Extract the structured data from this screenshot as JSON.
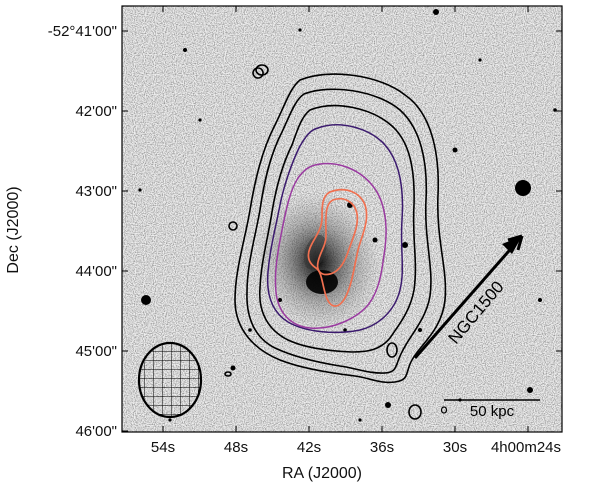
{
  "figure": {
    "x_axis_label": "RA (J2000)",
    "y_axis_label": "Dec (J2000)",
    "x_tick_labels": [
      "54s",
      "48s",
      "42s",
      "36s",
      "30s",
      "4h00m24s"
    ],
    "y_tick_labels": [
      "-52°41'00\"",
      "42'00\"",
      "43'00\"",
      "44'00\"",
      "45'00\"",
      "46'00\""
    ],
    "direction_label": "NGC1500",
    "scale_bar_label": "50 kpc",
    "contour_colors": {
      "outer": "#000000",
      "mid": "#3b1a6e",
      "inner": "#9a3aa0",
      "core": "#f07050"
    }
  }
}
